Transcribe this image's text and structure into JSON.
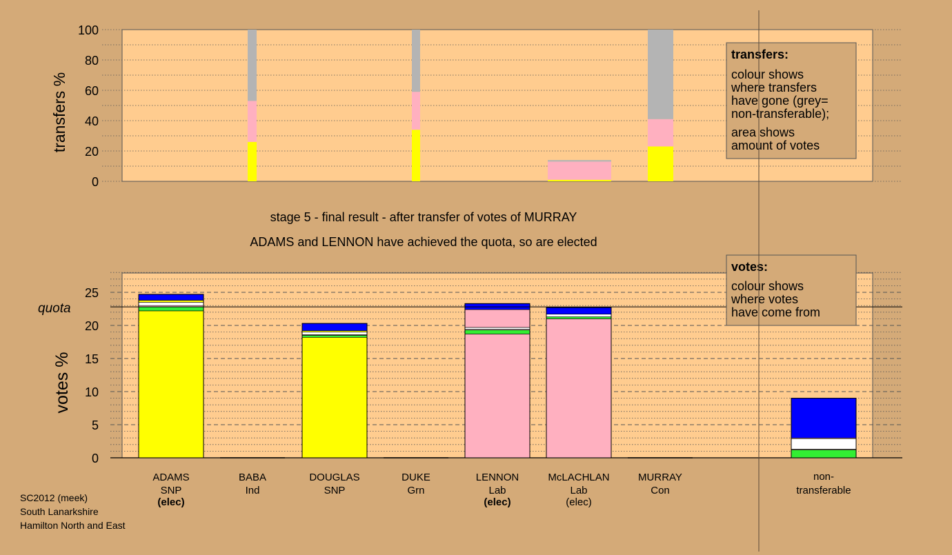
{
  "colors": {
    "page_background": "#d4aa78",
    "plot_background": "#ffcc8f",
    "SNP": "#ffff00",
    "Ind": "#ffffff",
    "Lab": "#ffb0c0",
    "Con": "#0000ff",
    "Grn": "#33ee33",
    "non_transferable": "#b4b4b4"
  },
  "upper_chart": {
    "ylabel": "transfers %",
    "ytick_labels": [
      "0",
      "20",
      "40",
      "60",
      "80",
      "100"
    ],
    "legend_box": {
      "title": "transfers:",
      "line1": "colour shows",
      "line2": "where transfers",
      "line3": "have gone (grey=",
      "line4": "non-transferable);",
      "line5": "area shows",
      "line6": "amount of votes"
    }
  },
  "captions": {
    "line1": "stage 5 - final result - after transfer of votes of MURRAY",
    "line2": "ADAMS and LENNON have achieved the quota, so are elected"
  },
  "lower_chart": {
    "ylabel": "votes %",
    "ytick_labels": [
      "0",
      "5",
      "10",
      "15",
      "20",
      "25"
    ],
    "quota_label": "quota",
    "legend_box": {
      "title": "votes:",
      "line1": "colour shows",
      "line2": "where votes",
      "line3": "have come from"
    }
  },
  "candidates": [
    {
      "name": "ADAMS",
      "party": "SNP",
      "status": "(elec)",
      "status_bold": true
    },
    {
      "name": "BABA",
      "party": "Ind",
      "status": "",
      "status_bold": false
    },
    {
      "name": "DOUGLAS",
      "party": "SNP",
      "status": "",
      "status_bold": false
    },
    {
      "name": "DUKE",
      "party": "Grn",
      "status": "",
      "status_bold": false
    },
    {
      "name": "LENNON",
      "party": "Lab",
      "status": "(elec)",
      "status_bold": true
    },
    {
      "name": "McLACHLAN",
      "party": "Lab",
      "status": "(elec)",
      "status_bold": false
    },
    {
      "name": "MURRAY",
      "party": "Con",
      "status": "",
      "status_bold": false
    }
  ],
  "non_transferable_label": {
    "line1": "non-",
    "line2": "transferable"
  },
  "footer": {
    "line1": "SC2012 (meek)",
    "line2": "South Lanarkshire",
    "line3": "Hamilton North and East"
  },
  "chart_data": [
    {
      "type": "bar",
      "stacked": true,
      "ylabel": "transfers %",
      "ylim": [
        0,
        100
      ],
      "transfers": [
        {
          "stage": 2,
          "width_votes_pct": 0.5,
          "segments": [
            {
              "to": "SNP",
              "color": "#ffff00",
              "value": 26
            },
            {
              "to": "Lab",
              "color": "#ffb0c0",
              "value": 27
            },
            {
              "to": "non-transferable",
              "color": "#b4b4b4",
              "value": 47
            }
          ]
        },
        {
          "stage": 3,
          "width_votes_pct": 0.5,
          "segments": [
            {
              "to": "SNP",
              "color": "#ffff00",
              "value": 34
            },
            {
              "to": "Lab",
              "color": "#ffb0c0",
              "value": 25
            },
            {
              "to": "non-transferable",
              "color": "#b4b4b4",
              "value": 41
            }
          ]
        },
        {
          "stage": 4,
          "width_votes_pct": 3.8,
          "segments": [
            {
              "to": "SNP",
              "color": "#ffff00",
              "value": 1
            },
            {
              "to": "Lab",
              "color": "#ffb0c0",
              "value": 12
            },
            {
              "to": "non-transferable",
              "color": "#b4b4b4",
              "value": 1
            }
          ]
        },
        {
          "stage": 5,
          "width_votes_pct": 1.6,
          "segments": [
            {
              "to": "SNP",
              "color": "#ffff00",
              "value": 23
            },
            {
              "to": "Lab",
              "color": "#ffb0c0",
              "value": 18
            },
            {
              "to": "non-transferable",
              "color": "#b4b4b4",
              "value": 59
            }
          ]
        }
      ]
    },
    {
      "type": "bar",
      "stacked": true,
      "ylabel": "votes %",
      "ylim": [
        0,
        28
      ],
      "quota": 22.8,
      "categories": [
        "ADAMS SNP",
        "BABA Ind",
        "DOUGLAS SNP",
        "DUKE Grn",
        "LENNON Lab",
        "McLACHLAN Lab",
        "MURRAY Con",
        "non-transferable"
      ],
      "bars": [
        {
          "category": "ADAMS SNP",
          "segments": [
            {
              "from": "SNP",
              "color": "#ffff00",
              "value": 22.2
            },
            {
              "from": "Grn",
              "color": "#33ee33",
              "value": 0.6
            },
            {
              "from": "Lab",
              "color": "#ffb0c0",
              "value": 0.2
            },
            {
              "from": "Ind",
              "color": "#ffffff",
              "value": 0.5
            },
            {
              "from": "SNP",
              "color": "#ffff00",
              "value": 0.3
            },
            {
              "from": "Con",
              "color": "#0000ff",
              "value": 0.9
            }
          ]
        },
        {
          "category": "BABA Ind",
          "segments": []
        },
        {
          "category": "DOUGLAS SNP",
          "segments": [
            {
              "from": "SNP",
              "color": "#ffff00",
              "value": 18.2
            },
            {
              "from": "Grn",
              "color": "#33ee33",
              "value": 0.3
            },
            {
              "from": "Lab",
              "color": "#ffb0c0",
              "value": 0.1
            },
            {
              "from": "Ind",
              "color": "#ffffff",
              "value": 0.4
            },
            {
              "from": "SNP",
              "color": "#ffff00",
              "value": 0.2
            },
            {
              "from": "Con",
              "color": "#0000ff",
              "value": 1.1
            }
          ]
        },
        {
          "category": "DUKE Grn",
          "segments": []
        },
        {
          "category": "LENNON Lab",
          "segments": [
            {
              "from": "Lab",
              "color": "#ffb0c0",
              "value": 18.7
            },
            {
              "from": "Grn",
              "color": "#33ee33",
              "value": 0.6
            },
            {
              "from": "Lab",
              "color": "#ffb0c0",
              "value": 0.1
            },
            {
              "from": "Ind",
              "color": "#ffffff",
              "value": 0.3
            },
            {
              "from": "Lab",
              "color": "#ffb0c0",
              "value": 2.7
            },
            {
              "from": "Con",
              "color": "#0000ff",
              "value": 0.9
            }
          ]
        },
        {
          "category": "McLACHLAN Lab",
          "segments": [
            {
              "from": "Lab",
              "color": "#ffb0c0",
              "value": 21.0
            },
            {
              "from": "Grn",
              "color": "#33ee33",
              "value": 0.3
            },
            {
              "from": "Ind",
              "color": "#ffffff",
              "value": 0.4
            },
            {
              "from": "Con",
              "color": "#0000ff",
              "value": 1.0
            }
          ]
        },
        {
          "category": "MURRAY Con",
          "segments": []
        },
        {
          "category": "non-transferable",
          "segments": [
            {
              "from": "Grn",
              "color": "#33ee33",
              "value": 1.2
            },
            {
              "from": "Lab",
              "color": "#ffb0c0",
              "value": 0.1
            },
            {
              "from": "Ind",
              "color": "#ffffff",
              "value": 1.6
            },
            {
              "from": "Lab",
              "color": "#ffb0c0",
              "value": 0.1
            },
            {
              "from": "Con",
              "color": "#0000ff",
              "value": 6.0
            }
          ]
        }
      ]
    }
  ]
}
